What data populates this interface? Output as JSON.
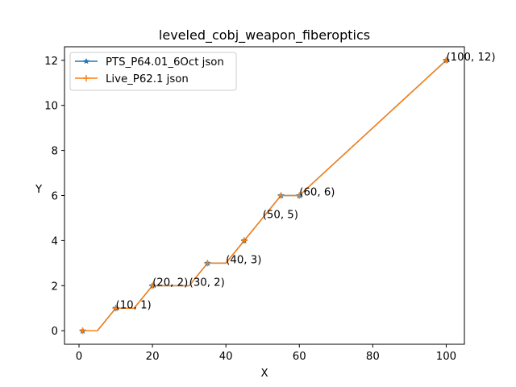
{
  "chart_data": {
    "type": "line",
    "title": "leveled_cobj_weapon_fiberoptics",
    "xlabel": "X",
    "ylabel": "Y",
    "xlim": [
      -3.95,
      104.95
    ],
    "ylim": [
      -0.6,
      12.6
    ],
    "xticks": [
      0,
      20,
      40,
      60,
      80,
      100
    ],
    "yticks": [
      0,
      2,
      4,
      6,
      8,
      10,
      12
    ],
    "grid": false,
    "legend_position": "top-left",
    "series": [
      {
        "name": "PTS_P64.01_6Oct json",
        "color": "#1f77b4",
        "marker": "star",
        "x": [
          1,
          5,
          10,
          15,
          20,
          30,
          35,
          40,
          45,
          50,
          55,
          60,
          100
        ],
        "y": [
          0,
          0,
          1,
          1,
          2,
          2,
          3,
          3,
          4,
          5,
          6,
          6,
          12
        ]
      },
      {
        "name": "Live_P62.1 json",
        "color": "#ff7f0e",
        "marker": "plus",
        "x": [
          1,
          5,
          10,
          15,
          20,
          30,
          35,
          40,
          45,
          50,
          55,
          60,
          100
        ],
        "y": [
          0,
          0,
          1,
          1,
          2,
          2,
          3,
          3,
          4,
          5,
          6,
          6,
          12
        ]
      }
    ],
    "markers_x": [
      1,
      10,
      20,
      35,
      45,
      55,
      60,
      100
    ],
    "markers_y": [
      0,
      1,
      2,
      3,
      4,
      6,
      6,
      12
    ],
    "annotations": [
      {
        "text": "(10, 1)",
        "x": 10,
        "y": 1
      },
      {
        "text": "(20, 2)",
        "x": 20,
        "y": 2
      },
      {
        "text": "(30, 2)",
        "x": 30,
        "y": 2
      },
      {
        "text": "(40, 3)",
        "x": 40,
        "y": 3
      },
      {
        "text": "(50, 5)",
        "x": 50,
        "y": 5
      },
      {
        "text": "(60, 6)",
        "x": 60,
        "y": 6
      },
      {
        "text": "(100, 12)",
        "x": 100,
        "y": 12
      }
    ]
  }
}
